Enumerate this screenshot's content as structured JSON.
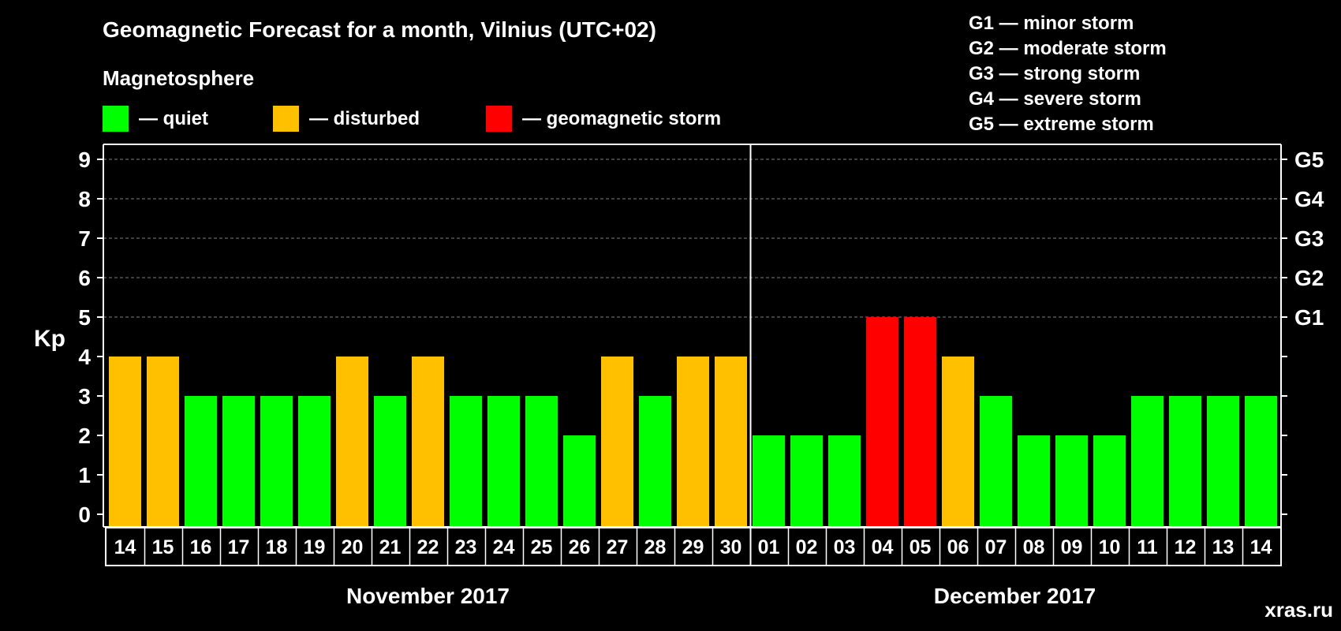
{
  "chart_data": {
    "type": "bar",
    "title": "Geomagnetic Forecast for a month, Vilnius (UTC+02)",
    "legend_title": "Magnetosphere",
    "legend": [
      {
        "label": "— quiet",
        "color": "#00ff00"
      },
      {
        "label": "— disturbed",
        "color": "#ffc000"
      },
      {
        "label": "— geomagnetic storm",
        "color": "#ff0000"
      }
    ],
    "storm_levels": [
      "G1 — minor storm",
      "G2 — moderate storm",
      "G3 — strong storm",
      "G4 — severe storm",
      "G5 — extreme storm"
    ],
    "ylabel": "Kp",
    "ylim": [
      0,
      9
    ],
    "yticks": [
      0,
      1,
      2,
      3,
      4,
      5,
      6,
      7,
      8,
      9
    ],
    "right_axis_labels": [
      {
        "kp": 5,
        "label": "G1"
      },
      {
        "kp": 6,
        "label": "G2"
      },
      {
        "kp": 7,
        "label": "G3"
      },
      {
        "kp": 8,
        "label": "G4"
      },
      {
        "kp": 9,
        "label": "G5"
      }
    ],
    "months": [
      {
        "label": "November 2017",
        "first_index": 0,
        "last_index": 16
      },
      {
        "label": "December 2017",
        "first_index": 17,
        "last_index": 30
      }
    ],
    "categories": [
      "14",
      "15",
      "16",
      "17",
      "18",
      "19",
      "20",
      "21",
      "22",
      "23",
      "24",
      "25",
      "26",
      "27",
      "28",
      "29",
      "30",
      "01",
      "02",
      "03",
      "04",
      "05",
      "06",
      "07",
      "08",
      "09",
      "10",
      "11",
      "12",
      "13",
      "14"
    ],
    "values": [
      4,
      4,
      3,
      3,
      3,
      3,
      4,
      3,
      4,
      3,
      3,
      3,
      2,
      4,
      3,
      4,
      4,
      2,
      2,
      2,
      5,
      5,
      4,
      3,
      2,
      2,
      2,
      3,
      3,
      3,
      3
    ],
    "colors": {
      "quiet": "#00ff00",
      "disturbed": "#ffc000",
      "storm": "#ff0000",
      "grid": "#808080",
      "axis": "#ffffff",
      "watermark": "#4a4a4a"
    },
    "watermark": "xras.ru"
  }
}
